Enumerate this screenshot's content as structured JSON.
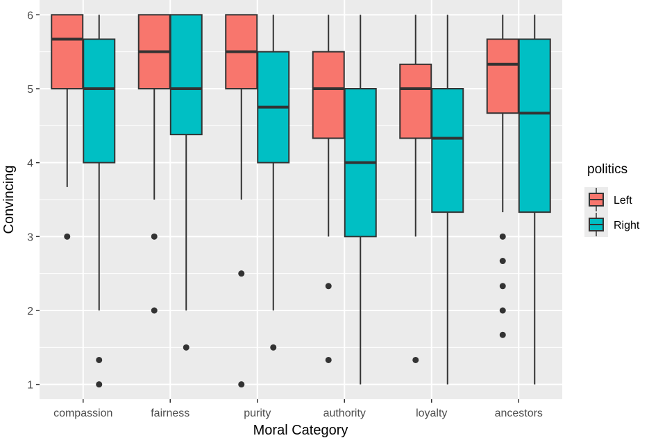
{
  "chart_data": {
    "type": "boxplot",
    "title": "",
    "xlabel": "Moral Category",
    "ylabel": "Convincing",
    "ylim": [
      0.8,
      6.2
    ],
    "yticks": [
      1,
      2,
      3,
      4,
      5,
      6
    ],
    "categories": [
      "compassion",
      "fairness",
      "purity",
      "authority",
      "loyalty",
      "ancestors"
    ],
    "legend": {
      "title": "politics",
      "position": "right"
    },
    "series": [
      {
        "name": "Left",
        "color": "#F8766D",
        "boxes": [
          {
            "whisker_low": 3.67,
            "q1": 5.0,
            "median": 5.67,
            "q3": 6.0,
            "whisker_high": 6.0,
            "outliers": [
              3.0
            ]
          },
          {
            "whisker_low": 3.5,
            "q1": 5.0,
            "median": 5.5,
            "q3": 6.0,
            "whisker_high": 6.0,
            "outliers": [
              3.0,
              2.0
            ]
          },
          {
            "whisker_low": 3.5,
            "q1": 5.0,
            "median": 5.5,
            "q3": 6.0,
            "whisker_high": 6.0,
            "outliers": [
              2.5,
              1.0
            ]
          },
          {
            "whisker_low": 3.0,
            "q1": 4.33,
            "median": 5.0,
            "q3": 5.5,
            "whisker_high": 6.0,
            "outliers": [
              2.33,
              1.33
            ]
          },
          {
            "whisker_low": 3.0,
            "q1": 4.33,
            "median": 5.0,
            "q3": 5.33,
            "whisker_high": 6.0,
            "outliers": [
              1.33
            ]
          },
          {
            "whisker_low": 3.33,
            "q1": 4.67,
            "median": 5.33,
            "q3": 5.67,
            "whisker_high": 6.0,
            "outliers": [
              3.0,
              2.67,
              2.33,
              2.0,
              1.67
            ]
          }
        ]
      },
      {
        "name": "Right",
        "color": "#00BFC4",
        "boxes": [
          {
            "whisker_low": 2.0,
            "q1": 4.0,
            "median": 5.0,
            "q3": 5.67,
            "whisker_high": 6.0,
            "outliers": [
              1.33,
              1.0
            ]
          },
          {
            "whisker_low": 2.0,
            "q1": 4.38,
            "median": 5.0,
            "q3": 6.0,
            "whisker_high": 6.0,
            "outliers": [
              1.5
            ]
          },
          {
            "whisker_low": 2.0,
            "q1": 4.0,
            "median": 4.75,
            "q3": 5.5,
            "whisker_high": 6.0,
            "outliers": [
              1.5
            ]
          },
          {
            "whisker_low": 1.0,
            "q1": 3.0,
            "median": 4.0,
            "q3": 5.0,
            "whisker_high": 6.0,
            "outliers": []
          },
          {
            "whisker_low": 1.0,
            "q1": 3.33,
            "median": 4.33,
            "q3": 5.0,
            "whisker_high": 6.0,
            "outliers": []
          },
          {
            "whisker_low": 1.0,
            "q1": 3.33,
            "median": 4.67,
            "q3": 5.67,
            "whisker_high": 6.0,
            "outliers": []
          }
        ]
      }
    ]
  },
  "colors": {
    "panel_background": "#EBEBEB",
    "grid_line": "#FFFFFF",
    "box_outline": "#333333",
    "outlier": "#333333"
  }
}
